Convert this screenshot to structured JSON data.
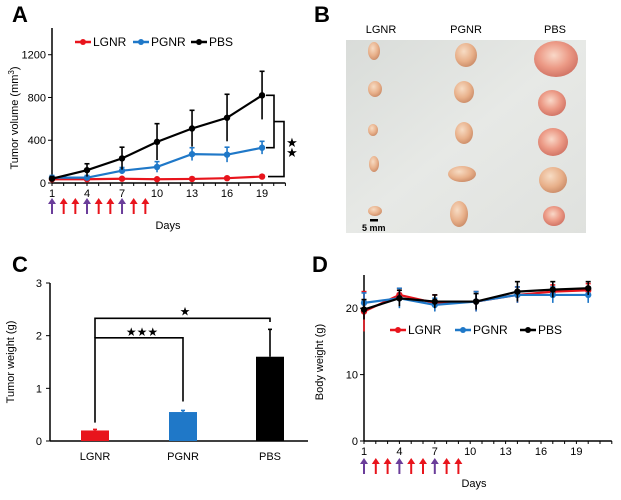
{
  "figure": {
    "panels": [
      "A",
      "B",
      "C",
      "D"
    ]
  },
  "colors": {
    "LGNR": "#e8141c",
    "PGNR": "#1f78c8",
    "PBS": "#000000",
    "arrow_purple": "#6a3d9a",
    "arrow_red": "#e8141c"
  },
  "photo": {
    "letter": "B",
    "columns": [
      "LGNR",
      "PGNR",
      "PBS"
    ],
    "scale_bar_label": "5 mm",
    "tumors_per_group": 5
  },
  "chart_data": [
    {
      "panel": "A",
      "type": "line",
      "title": "",
      "xlabel": "Days",
      "ylabel": "Tumor volume (mm³)",
      "ylabel_main": "Tumor volume (mm",
      "ylabel_sup": "3",
      "ylabel_tail": ")",
      "xlim": [
        1,
        21
      ],
      "ylim": [
        0,
        1450
      ],
      "xticks": [
        1,
        4,
        7,
        10,
        13,
        16,
        19
      ],
      "yticks": [
        0,
        400,
        800,
        1200
      ],
      "x": [
        1,
        4,
        7,
        10,
        13,
        16,
        19
      ],
      "series": [
        {
          "name": "LGNR",
          "values": [
            35,
            35,
            40,
            35,
            38,
            45,
            60
          ],
          "errors": [
            10,
            10,
            10,
            10,
            10,
            12,
            15
          ]
        },
        {
          "name": "PGNR",
          "values": [
            50,
            50,
            115,
            150,
            270,
            265,
            330
          ],
          "errors": [
            20,
            20,
            30,
            50,
            60,
            70,
            60
          ]
        },
        {
          "name": "PBS",
          "values": [
            40,
            120,
            230,
            385,
            510,
            610,
            820
          ],
          "errors": [
            20,
            60,
            105,
            170,
            170,
            220,
            225
          ]
        }
      ],
      "legend": {
        "placement": "top",
        "entries": [
          "LGNR",
          "PGNR",
          "PBS"
        ]
      },
      "significance": [
        {
          "between": [
            "PBS",
            "PGNR"
          ],
          "label": "★"
        },
        {
          "between": [
            "PBS",
            "LGNR"
          ],
          "label": "★"
        }
      ],
      "dosing_arrows": {
        "days": [
          1,
          2,
          3,
          4,
          5,
          6,
          7,
          8,
          9
        ],
        "colors": [
          "purple",
          "red",
          "red",
          "purple",
          "red",
          "red",
          "purple",
          "red",
          "red"
        ]
      },
      "grid": false
    },
    {
      "panel": "C",
      "type": "bar",
      "title": "",
      "xlabel": "",
      "ylabel": "Tumor weight (g)",
      "categories": [
        "LGNR",
        "PGNR",
        "PBS"
      ],
      "values": [
        0.2,
        0.55,
        1.6
      ],
      "errors": [
        0.02,
        0.03,
        0.52
      ],
      "ylim": [
        0,
        3
      ],
      "yticks": [
        0,
        1,
        2,
        3
      ],
      "significance": [
        {
          "between": [
            "LGNR",
            "PGNR"
          ],
          "label": "★★★"
        },
        {
          "between": [
            "LGNR",
            "PBS"
          ],
          "label": "★"
        }
      ],
      "grid": false
    },
    {
      "panel": "D",
      "type": "line",
      "title": "",
      "xlabel": "Days",
      "ylabel": "Body weight (g)",
      "xlim": [
        1,
        22
      ],
      "ylim": [
        0,
        25
      ],
      "xticks": [
        1,
        4,
        7,
        10,
        13,
        16,
        19
      ],
      "yticks": [
        0,
        10,
        20
      ],
      "x": [
        1,
        4,
        7,
        10.5,
        14,
        17,
        20
      ],
      "series": [
        {
          "name": "LGNR",
          "values": [
            19.5,
            22.0,
            20.8,
            21.0,
            22.0,
            22.5,
            22.7
          ],
          "errors": [
            3.0,
            1.0,
            1.2,
            1.5,
            1.2,
            1.0,
            1.0
          ]
        },
        {
          "name": "PGNR",
          "values": [
            20.8,
            21.5,
            20.5,
            21.0,
            22.0,
            22.0,
            22.0
          ],
          "errors": [
            1.5,
            1.5,
            1.0,
            1.5,
            1.2,
            1.2,
            1.2
          ]
        },
        {
          "name": "PBS",
          "values": [
            19.8,
            21.5,
            21.0,
            21.0,
            22.5,
            22.8,
            23.0
          ],
          "errors": [
            1.5,
            1.2,
            1.0,
            1.2,
            1.5,
            1.2,
            1.0
          ]
        }
      ],
      "legend": {
        "placement": "upper-center",
        "entries": [
          "LGNR",
          "PGNR",
          "PBS"
        ]
      },
      "dosing_arrows": {
        "days": [
          1,
          2,
          3,
          4,
          5,
          6,
          7,
          8,
          9
        ],
        "colors": [
          "purple",
          "red",
          "red",
          "purple",
          "red",
          "red",
          "purple",
          "red",
          "red"
        ]
      },
      "grid": false
    }
  ]
}
